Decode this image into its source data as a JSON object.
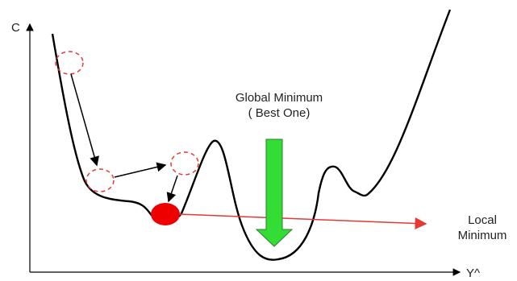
{
  "axes": {
    "y_label": "C",
    "x_label": "Y^"
  },
  "annotations": {
    "global_line1": "Global Minimum",
    "global_line2": "( Best One)",
    "local_line1": "Local",
    "local_line2": "Minimum"
  },
  "colors": {
    "curve": "#000000",
    "dashed_circle": "#e53935",
    "ball": "#ee0000",
    "red_arrow": "#e53935",
    "green_arrow": "#33dd33",
    "green_arrow_outline": "#2e7d32"
  }
}
